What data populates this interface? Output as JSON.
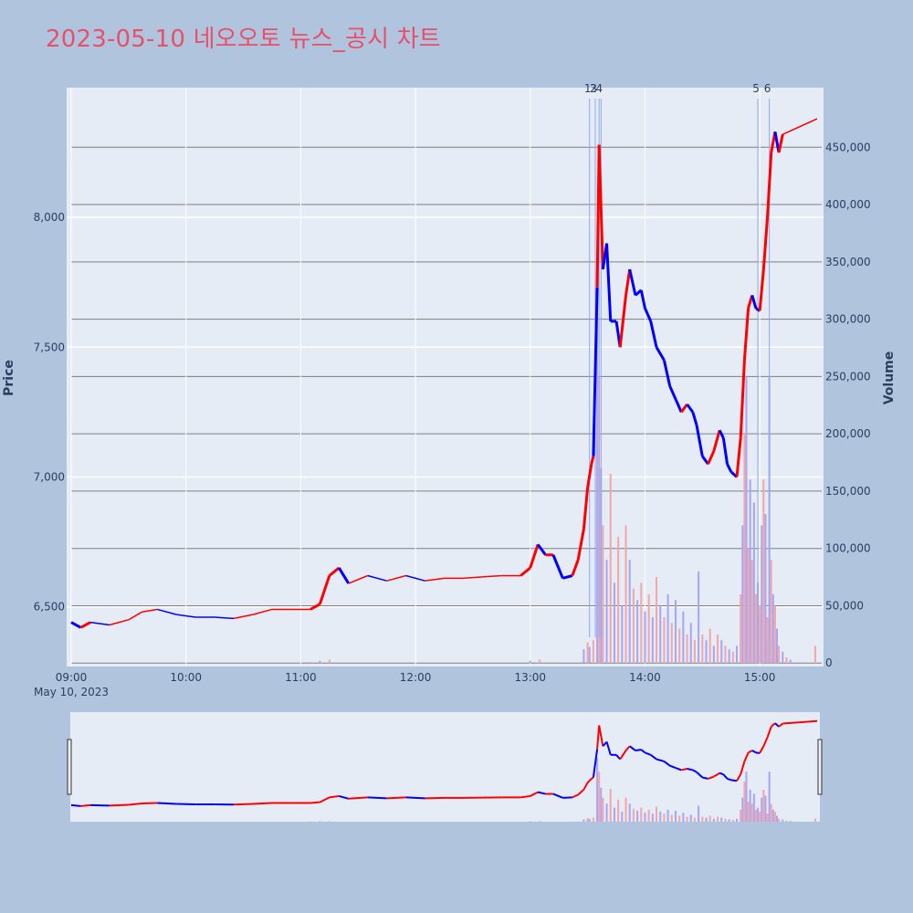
{
  "title": "2023-05-10 네오오토 뉴스_공시 차트",
  "colors": {
    "page_background": "#B0C4DE",
    "plot_background": "#E5ECF6",
    "up": "#FF0000",
    "down": "#0000FF",
    "volume_up": "#F4A6A6",
    "volume_down": "#A6A6F4",
    "event_line": "#8FA8F0",
    "volume_grid": "#7F7F7F",
    "title": "#E8506A"
  },
  "chart_data": {
    "type": "candlestick",
    "date_label": "May 10, 2023",
    "x_ticks": [
      "09:00",
      "10:00",
      "11:00",
      "12:00",
      "13:00",
      "14:00",
      "15:00"
    ],
    "x_range": [
      "09:00",
      "15:30"
    ],
    "y_price": {
      "label": "Price",
      "ticks": [
        "6,500",
        "7,000",
        "7,500",
        "8,000"
      ],
      "tick_values": [
        6500,
        7000,
        7500,
        8000
      ],
      "range": [
        6270,
        8500
      ]
    },
    "y_volume": {
      "label": "Volume",
      "ticks": [
        "0",
        "50,000",
        "100,000",
        "150,000",
        "200,000",
        "250,000",
        "300,000",
        "350,000",
        "400,000",
        "450,000"
      ],
      "tick_values": [
        0,
        50000,
        100000,
        150000,
        200000,
        250000,
        300000,
        350000,
        400000,
        450000
      ],
      "range": [
        -3000,
        502000
      ]
    },
    "events": [
      {
        "label": "1",
        "time": "13:31"
      },
      {
        "label": "2",
        "time": "13:34"
      },
      {
        "label": "3",
        "time": "13:36"
      },
      {
        "label": "4",
        "time": "13:37"
      },
      {
        "label": "5",
        "time": "14:59"
      },
      {
        "label": "6",
        "time": "15:05"
      }
    ],
    "price_path": [
      [
        "09:00",
        6440,
        "down"
      ],
      [
        "09:05",
        6420,
        "down"
      ],
      [
        "09:10",
        6440,
        "up"
      ],
      [
        "09:20",
        6430,
        "down"
      ],
      [
        "09:30",
        6450,
        "up"
      ],
      [
        "09:37",
        6480,
        "up"
      ],
      [
        "09:45",
        6490,
        "up"
      ],
      [
        "09:55",
        6470,
        "down"
      ],
      [
        "10:05",
        6460,
        "down"
      ],
      [
        "10:15",
        6460,
        "down"
      ],
      [
        "10:25",
        6455,
        "down"
      ],
      [
        "10:35",
        6470,
        "up"
      ],
      [
        "10:45",
        6490,
        "up"
      ],
      [
        "10:55",
        6490,
        "up"
      ],
      [
        "11:05",
        6490,
        "up"
      ],
      [
        "11:10",
        6510,
        "up"
      ],
      [
        "11:15",
        6620,
        "up"
      ],
      [
        "11:20",
        6650,
        "up"
      ],
      [
        "11:25",
        6590,
        "down"
      ],
      [
        "11:35",
        6620,
        "up"
      ],
      [
        "11:45",
        6600,
        "down"
      ],
      [
        "11:55",
        6620,
        "up"
      ],
      [
        "12:05",
        6600,
        "down"
      ],
      [
        "12:15",
        6610,
        "up"
      ],
      [
        "12:25",
        6610,
        "up"
      ],
      [
        "12:35",
        6615,
        "up"
      ],
      [
        "12:45",
        6620,
        "up"
      ],
      [
        "12:55",
        6620,
        "up"
      ],
      [
        "13:00",
        6650,
        "up"
      ],
      [
        "13:04",
        6740,
        "up"
      ],
      [
        "13:08",
        6700,
        "down"
      ],
      [
        "13:12",
        6700,
        "up"
      ],
      [
        "13:17",
        6610,
        "down"
      ],
      [
        "13:22",
        6620,
        "down"
      ],
      [
        "13:25",
        6680,
        "up"
      ],
      [
        "13:28",
        6800,
        "up"
      ],
      [
        "13:30",
        6960,
        "up"
      ],
      [
        "13:32",
        7050,
        "up"
      ],
      [
        "13:33",
        7080,
        "up"
      ],
      [
        "13:35",
        7730,
        "down"
      ],
      [
        "13:36",
        8280,
        "up"
      ],
      [
        "13:38",
        7800,
        "up"
      ],
      [
        "13:40",
        7900,
        "down"
      ],
      [
        "13:42",
        7600,
        "down"
      ],
      [
        "13:45",
        7600,
        "down"
      ],
      [
        "13:47",
        7500,
        "down"
      ],
      [
        "13:50",
        7700,
        "up"
      ],
      [
        "13:52",
        7800,
        "up"
      ],
      [
        "13:55",
        7700,
        "down"
      ],
      [
        "13:58",
        7720,
        "down"
      ],
      [
        "14:00",
        7650,
        "down"
      ],
      [
        "14:03",
        7600,
        "down"
      ],
      [
        "14:06",
        7500,
        "down"
      ],
      [
        "14:10",
        7450,
        "down"
      ],
      [
        "14:13",
        7350,
        "down"
      ],
      [
        "14:16",
        7300,
        "down"
      ],
      [
        "14:19",
        7250,
        "down"
      ],
      [
        "14:22",
        7280,
        "up"
      ],
      [
        "14:25",
        7250,
        "down"
      ],
      [
        "14:27",
        7200,
        "down"
      ],
      [
        "14:30",
        7080,
        "down"
      ],
      [
        "14:33",
        7050,
        "down"
      ],
      [
        "14:36",
        7100,
        "up"
      ],
      [
        "14:39",
        7180,
        "up"
      ],
      [
        "14:41",
        7150,
        "down"
      ],
      [
        "14:43",
        7050,
        "down"
      ],
      [
        "14:45",
        7020,
        "down"
      ],
      [
        "14:48",
        7000,
        "down"
      ],
      [
        "14:50",
        7150,
        "up"
      ],
      [
        "14:52",
        7450,
        "up"
      ],
      [
        "14:54",
        7650,
        "up"
      ],
      [
        "14:56",
        7700,
        "up"
      ],
      [
        "14:58",
        7650,
        "down"
      ],
      [
        "15:00",
        7640,
        "down"
      ],
      [
        "15:02",
        7800,
        "up"
      ],
      [
        "15:04",
        8000,
        "up"
      ],
      [
        "15:06",
        8250,
        "up"
      ],
      [
        "15:08",
        8330,
        "up"
      ],
      [
        "15:10",
        8250,
        "down"
      ],
      [
        "15:12",
        8320,
        "up"
      ],
      [
        "15:30",
        8380,
        "up"
      ]
    ],
    "volume_bars": [
      [
        "11:05",
        1000
      ],
      [
        "11:10",
        2000
      ],
      [
        "11:15",
        3000
      ],
      [
        "13:00",
        2000
      ],
      [
        "13:05",
        3000
      ],
      [
        "13:28",
        12000
      ],
      [
        "13:30",
        18000
      ],
      [
        "13:31",
        14000
      ],
      [
        "13:33",
        20000
      ],
      [
        "13:35",
        320000
      ],
      [
        "13:36",
        250000
      ],
      [
        "13:37",
        170000
      ],
      [
        "13:38",
        120000
      ],
      [
        "13:40",
        90000
      ],
      [
        "13:42",
        165000
      ],
      [
        "13:44",
        70000
      ],
      [
        "13:46",
        110000
      ],
      [
        "13:48",
        50000
      ],
      [
        "13:50",
        120000
      ],
      [
        "13:52",
        90000
      ],
      [
        "13:54",
        65000
      ],
      [
        "13:56",
        55000
      ],
      [
        "13:58",
        70000
      ],
      [
        "14:00",
        45000
      ],
      [
        "14:02",
        60000
      ],
      [
        "14:04",
        40000
      ],
      [
        "14:06",
        75000
      ],
      [
        "14:08",
        50000
      ],
      [
        "14:10",
        40000
      ],
      [
        "14:12",
        60000
      ],
      [
        "14:14",
        35000
      ],
      [
        "14:16",
        55000
      ],
      [
        "14:18",
        30000
      ],
      [
        "14:20",
        45000
      ],
      [
        "14:22",
        25000
      ],
      [
        "14:24",
        35000
      ],
      [
        "14:26",
        20000
      ],
      [
        "14:28",
        80000
      ],
      [
        "14:30",
        25000
      ],
      [
        "14:32",
        20000
      ],
      [
        "14:34",
        30000
      ],
      [
        "14:36",
        15000
      ],
      [
        "14:38",
        25000
      ],
      [
        "14:40",
        20000
      ],
      [
        "14:42",
        15000
      ],
      [
        "14:44",
        12000
      ],
      [
        "14:46",
        10000
      ],
      [
        "14:48",
        15000
      ],
      [
        "14:50",
        60000
      ],
      [
        "14:51",
        120000
      ],
      [
        "14:52",
        200000
      ],
      [
        "14:53",
        250000
      ],
      [
        "14:54",
        100000
      ],
      [
        "14:55",
        160000
      ],
      [
        "14:56",
        90000
      ],
      [
        "14:57",
        140000
      ],
      [
        "14:58",
        60000
      ],
      [
        "14:59",
        70000
      ],
      [
        "15:00",
        50000
      ],
      [
        "15:01",
        120000
      ],
      [
        "15:02",
        160000
      ],
      [
        "15:03",
        130000
      ],
      [
        "15:04",
        40000
      ],
      [
        "15:05",
        250000
      ],
      [
        "15:06",
        90000
      ],
      [
        "15:07",
        60000
      ],
      [
        "15:08",
        50000
      ],
      [
        "15:09",
        30000
      ],
      [
        "15:10",
        15000
      ],
      [
        "15:12",
        10000
      ],
      [
        "15:14",
        5000
      ],
      [
        "15:16",
        3000
      ],
      [
        "15:29",
        15000
      ]
    ]
  }
}
